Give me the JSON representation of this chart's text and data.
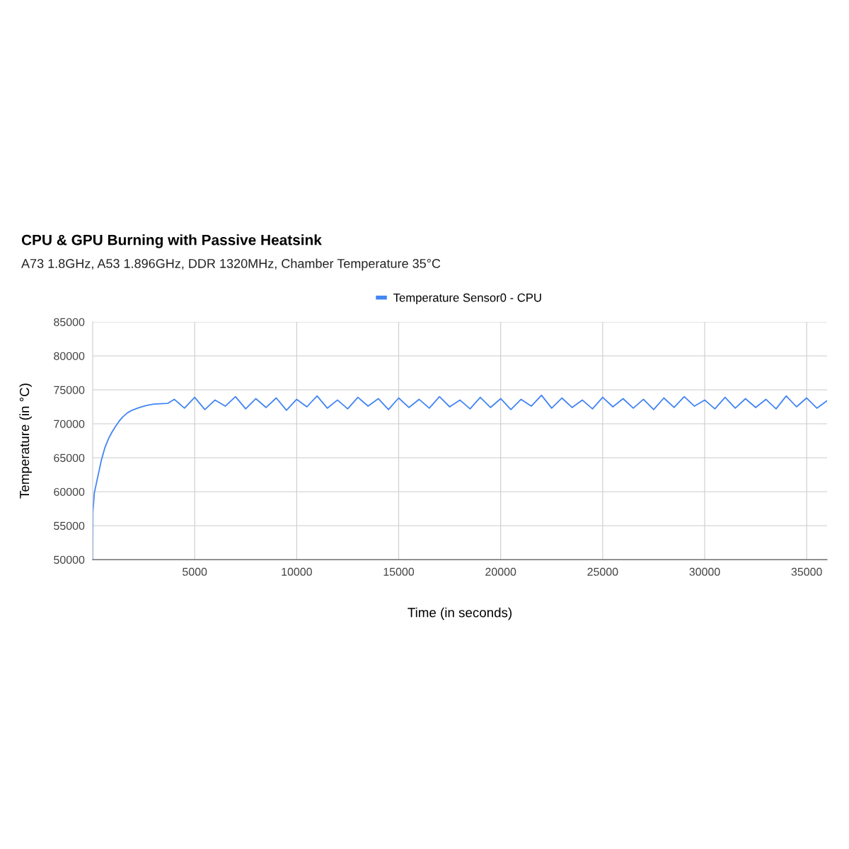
{
  "chart_data": {
    "type": "line",
    "title": "CPU & GPU Burning with Passive Heatsink",
    "subtitle": "A73 1.8GHz, A53 1.896GHz, DDR 1320MHz, Chamber Temperature 35°C",
    "xlabel": "Time (in seconds)",
    "ylabel": "Temperature (in °C)",
    "xlim": [
      0,
      36000
    ],
    "xticks": [
      5000,
      10000,
      15000,
      20000,
      25000,
      30000,
      35000
    ],
    "ylim": [
      50000,
      85000
    ],
    "yticks": [
      50000,
      55000,
      60000,
      65000,
      70000,
      75000,
      80000,
      85000
    ],
    "grid": true,
    "legend": "top",
    "marker": "none",
    "line_style": "solid",
    "series": [
      {
        "name": "Temperature Sensor0 - CPU",
        "color": "#4285f4",
        "x": [
          0,
          10,
          80,
          200,
          430,
          600,
          775,
          950,
          1120,
          1300,
          1470,
          1700,
          1930,
          2300,
          2630,
          3000,
          3670,
          4000,
          4500,
          5000,
          5500,
          6000,
          6500,
          7000,
          7500,
          8000,
          8500,
          9000,
          9500,
          10000,
          10500,
          11000,
          11500,
          12000,
          12500,
          13000,
          13500,
          14000,
          14500,
          15000,
          15500,
          16000,
          16500,
          17000,
          17500,
          18000,
          18500,
          19000,
          19500,
          20000,
          20500,
          21000,
          21500,
          22000,
          22500,
          23000,
          23500,
          24000,
          24500,
          25000,
          25500,
          26000,
          26500,
          27000,
          27500,
          28000,
          28500,
          29000,
          29500,
          30000,
          30500,
          31000,
          31500,
          32000,
          32500,
          33000,
          33500,
          34000,
          34500,
          35000,
          35500,
          36000
        ],
        "values": [
          50000,
          57000,
          59800,
          61500,
          64700,
          66500,
          67800,
          68800,
          69600,
          70400,
          71000,
          71600,
          72000,
          72400,
          72700,
          72900,
          73000,
          73600,
          72300,
          73900,
          72100,
          73500,
          72600,
          74000,
          72200,
          73700,
          72400,
          73800,
          72000,
          73600,
          72500,
          74100,
          72300,
          73500,
          72200,
          73900,
          72600,
          73700,
          72100,
          73800,
          72400,
          73600,
          72300,
          74000,
          72500,
          73500,
          72200,
          73900,
          72400,
          73700,
          72100,
          73600,
          72600,
          74200,
          72300,
          73800,
          72400,
          73500,
          72200,
          73900,
          72500,
          73700,
          72300,
          73600,
          72100,
          73800,
          72400,
          74000,
          72600,
          73500,
          72200,
          73900,
          72300,
          73700,
          72400,
          73600,
          72200,
          74100,
          72500,
          73800,
          72300,
          73400
        ]
      }
    ]
  }
}
